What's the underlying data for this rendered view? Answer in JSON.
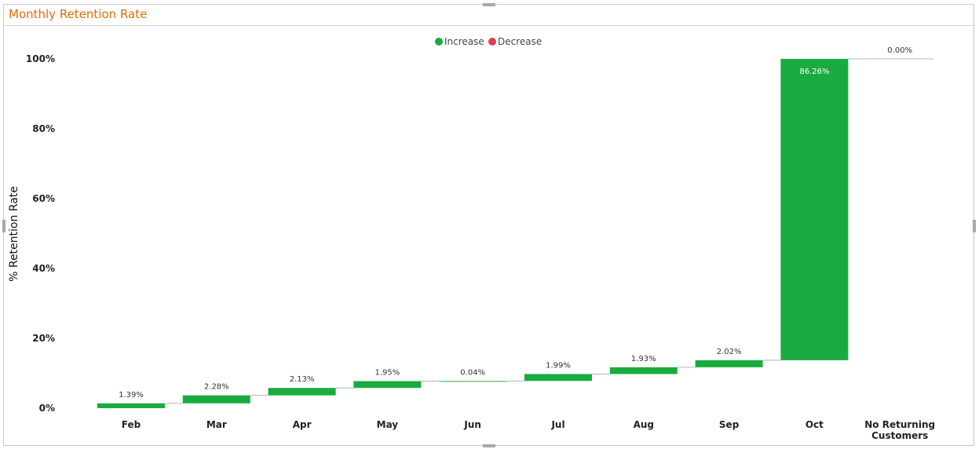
{
  "visual": {
    "title": "Monthly Retention Rate"
  },
  "chart_data": {
    "type": "bar",
    "subtype": "waterfall",
    "title": "",
    "xlabel": "",
    "ylabel": "% Retention Rate",
    "ylim": [
      0,
      100
    ],
    "yticks": [
      "0%",
      "20%",
      "40%",
      "60%",
      "80%",
      "100%"
    ],
    "ytick_values": [
      0,
      20,
      40,
      60,
      80,
      100
    ],
    "grid": false,
    "legend_position": "top-center",
    "legend": [
      {
        "label": "Increase",
        "color": "#1aab40"
      },
      {
        "label": "Decrease",
        "color": "#d64550"
      }
    ],
    "categories": [
      "Feb",
      "Mar",
      "Apr",
      "May",
      "Jun",
      "Jul",
      "Aug",
      "Sep",
      "Oct",
      "No Returning Customers"
    ],
    "category_lines": [
      [
        "Feb"
      ],
      [
        "Mar"
      ],
      [
        "Apr"
      ],
      [
        "May"
      ],
      [
        "Jun"
      ],
      [
        "Jul"
      ],
      [
        "Aug"
      ],
      [
        "Sep"
      ],
      [
        "Oct"
      ],
      [
        "No Returning",
        "Customers"
      ]
    ],
    "values": [
      1.39,
      2.28,
      2.13,
      1.95,
      0.04,
      1.99,
      1.93,
      2.02,
      86.26,
      0.0
    ],
    "labels": [
      "1.39%",
      "2.28%",
      "2.13%",
      "1.95%",
      "0.04%",
      "1.99%",
      "1.93%",
      "2.02%",
      "86.26%",
      "0.00%"
    ],
    "colors": {
      "increase": "#1aab40",
      "decrease": "#d64550",
      "connector": "#b4b4b4"
    }
  }
}
